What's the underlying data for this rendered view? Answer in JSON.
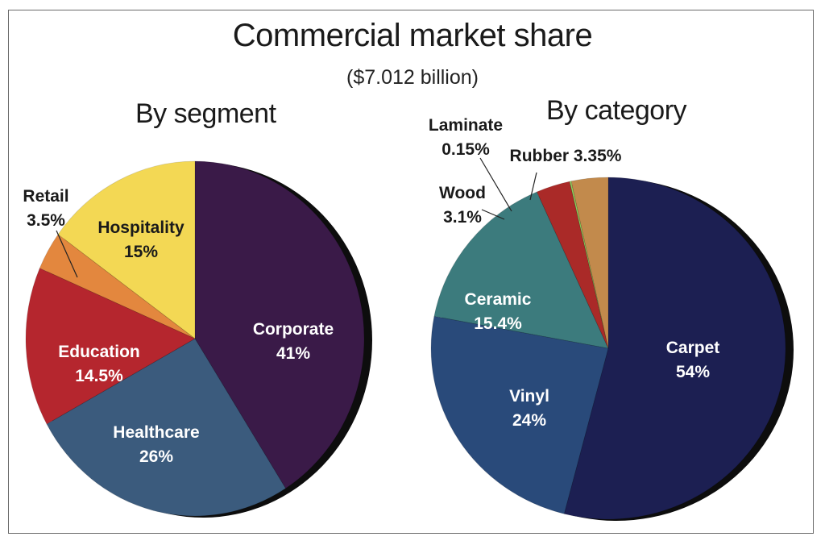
{
  "title": "Commercial market share",
  "subtitle": "($7.012 billion)",
  "chart_data": [
    {
      "type": "pie",
      "title": "By segment",
      "slices": [
        {
          "name": "Corporate",
          "value": 41,
          "label_value": "41%",
          "color": "#3a1a48"
        },
        {
          "name": "Healthcare",
          "value": 26,
          "label_value": "26%",
          "color": "#3b5b7d"
        },
        {
          "name": "Education",
          "value": 14.5,
          "label_value": "14.5%",
          "color": "#b5262e"
        },
        {
          "name": "Retail",
          "value": 3.5,
          "label_value": "3.5%",
          "color": "#e3873e"
        },
        {
          "name": "Hospitality",
          "value": 15,
          "label_value": "15%",
          "color": "#f3d854"
        }
      ]
    },
    {
      "type": "pie",
      "title": "By category",
      "slices": [
        {
          "name": "Carpet",
          "value": 54,
          "label_value": "54%",
          "color": "#1c1f52"
        },
        {
          "name": "Vinyl",
          "value": 24,
          "label_value": "24%",
          "color": "#294a7a"
        },
        {
          "name": "Ceramic",
          "value": 15.4,
          "label_value": "15.4%",
          "color": "#3c7b7d"
        },
        {
          "name": "Wood",
          "value": 3.1,
          "label_value": "3.1%",
          "color": "#aa2a28"
        },
        {
          "name": "Laminate",
          "value": 0.15,
          "label_value": "0.15%",
          "color": "#8fcf5e"
        },
        {
          "name": "Rubber",
          "value": 3.35,
          "label_value": "3.35%",
          "color": "#c28a4c"
        }
      ]
    }
  ]
}
